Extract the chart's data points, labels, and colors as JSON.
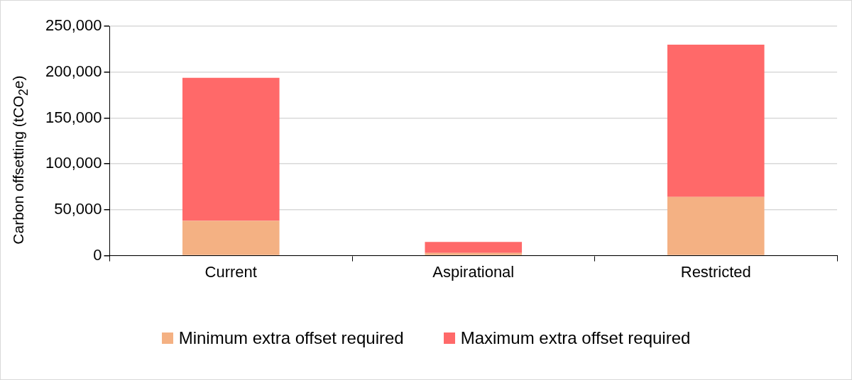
{
  "chart_data": {
    "type": "bar",
    "ylabel": "Carbon offsetting (tCO$_{2}$e)",
    "categories": [
      "Current",
      "Aspirational",
      "Restricted"
    ],
    "stacked": true,
    "series": [
      {
        "name": "Minimum extra offset required",
        "color": "#f4b183",
        "values": [
          38000,
          3000,
          64000
        ]
      },
      {
        "name": "Maximum extra offset required",
        "color": "#ff6969",
        "values": [
          156000,
          12000,
          166000
        ]
      }
    ],
    "ylim": [
      0,
      250000
    ],
    "yticks": [
      {
        "value": 0,
        "label": "0"
      },
      {
        "value": 50000,
        "label": "50,000"
      },
      {
        "value": 100000,
        "label": "100,000"
      },
      {
        "value": 150000,
        "label": "150,000"
      },
      {
        "value": 200000,
        "label": "200,000"
      },
      {
        "value": 250000,
        "label": "250,000"
      }
    ],
    "grid": "y",
    "legend": "bottom"
  }
}
